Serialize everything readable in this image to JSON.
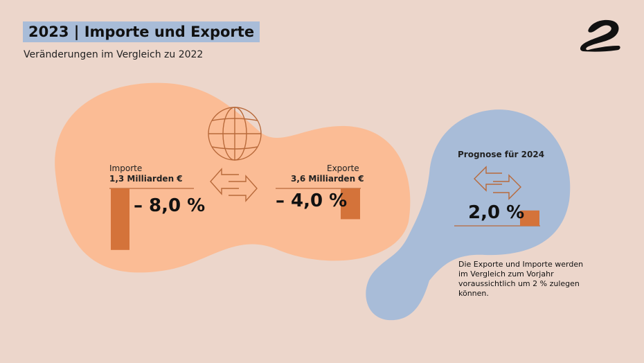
{
  "header": {
    "title": "2023 | Importe und Exporte",
    "subtitle": "Veränderungen im Vergleich zu 2022"
  },
  "logo": {
    "name": "brand-logo"
  },
  "colors": {
    "background": "#ecd6cb",
    "blob_2023": "#fbbc95",
    "blob_2024": "#a8bcd8",
    "bar": "#d4733a",
    "icon_stroke": "#b8693a",
    "title_highlight": "#a8bcd8"
  },
  "chart_data": [
    {
      "type": "bar",
      "title": "2023",
      "items": [
        {
          "label": "Importe",
          "amount": "1,3 Milliarden €",
          "value": -8.0,
          "value_label": "– 8,0 %"
        },
        {
          "label": "Exporte",
          "amount": "3,6 Milliarden €",
          "value": -4.0,
          "value_label": "– 4,0 %"
        }
      ],
      "unit": "%"
    },
    {
      "type": "bar",
      "title": "Prognose für 2024",
      "items": [
        {
          "label": "",
          "value": 2.0,
          "value_label": "2,0 %"
        }
      ],
      "unit": "%",
      "note": "Die Exporte und Importe werden im Vergleich zum Vorjahr voraussichtlich um 2 % zulegen können."
    }
  ],
  "icons": [
    "globe-icon",
    "exchange-arrows-icon",
    "forecast-exchange-arrows-icon"
  ]
}
